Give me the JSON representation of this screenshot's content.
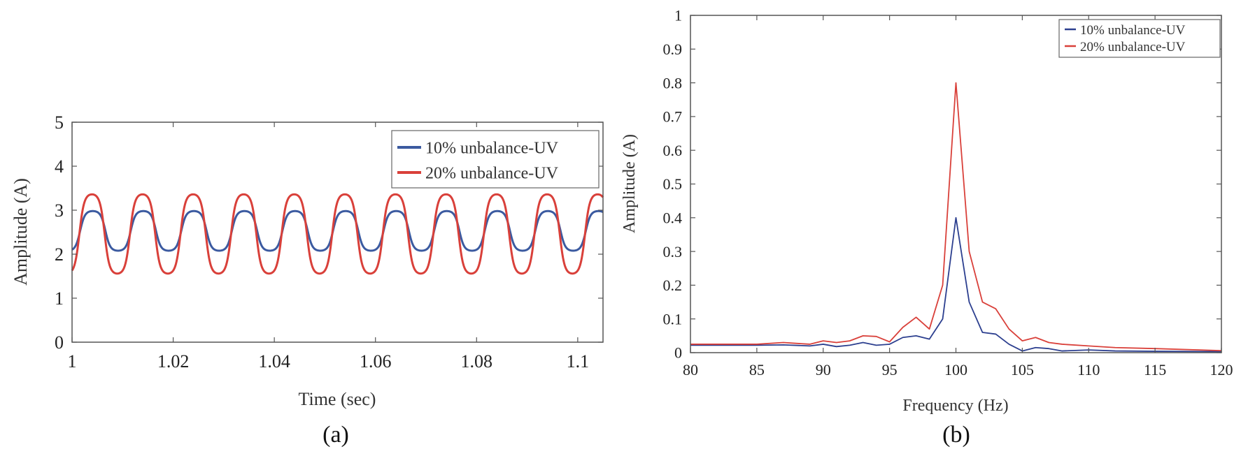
{
  "chart_data": [
    {
      "type": "line",
      "caption": "(a)",
      "xlabel": "Time (sec)",
      "ylabel": "Amplitude (A)",
      "xlim": [
        1,
        1.105
      ],
      "ylim": [
        0,
        5
      ],
      "xticks": [
        1,
        1.02,
        1.04,
        1.06,
        1.08,
        1.1
      ],
      "xtick_labels": [
        "1",
        "1.02",
        "1.04",
        "1.06",
        "1.08",
        "1.1"
      ],
      "yticks": [
        0,
        1,
        2,
        3,
        4,
        5
      ],
      "ytick_labels": [
        "0",
        "1",
        "2",
        "3",
        "4",
        "5"
      ],
      "grid": false,
      "legend_position": "top-right",
      "period_sec": 0.01,
      "series": [
        {
          "name": "10% unbalance-UV",
          "color": "#3b5aa0",
          "mean": 2.53,
          "amplitude": 0.45,
          "start": 2.15
        },
        {
          "name": "20% unbalance-UV",
          "color": "#d9403a",
          "mean": 2.46,
          "amplitude": 0.9,
          "start": 1.75
        }
      ]
    },
    {
      "type": "line",
      "caption": "(b)",
      "xlabel": "Frequency (Hz)",
      "ylabel": "Amplitude (A)",
      "xlim": [
        80,
        120
      ],
      "ylim": [
        0,
        1
      ],
      "xticks": [
        80,
        85,
        90,
        95,
        100,
        105,
        110,
        115,
        120
      ],
      "xtick_labels": [
        "80",
        "85",
        "90",
        "95",
        "100",
        "105",
        "110",
        "115",
        "120"
      ],
      "yticks": [
        0,
        0.1,
        0.2,
        0.3,
        0.4,
        0.5,
        0.6,
        0.7,
        0.8,
        0.9,
        1
      ],
      "ytick_labels": [
        "0",
        "0.1",
        "0.2",
        "0.3",
        "0.4",
        "0.5",
        "0.6",
        "0.7",
        "0.8",
        "0.9",
        "1"
      ],
      "grid": false,
      "legend_position": "top-right",
      "series": [
        {
          "name": "10% unbalance-UV",
          "color": "#2c3f8f",
          "x": [
            80,
            85,
            87,
            89,
            90,
            91,
            92,
            93,
            94,
            95,
            96,
            97,
            98,
            99,
            100,
            101,
            102,
            103,
            104,
            105,
            106,
            107,
            108,
            110,
            112,
            115,
            120
          ],
          "y": [
            0.022,
            0.022,
            0.023,
            0.02,
            0.025,
            0.018,
            0.022,
            0.03,
            0.022,
            0.025,
            0.045,
            0.05,
            0.04,
            0.1,
            0.4,
            0.15,
            0.06,
            0.055,
            0.025,
            0.005,
            0.015,
            0.012,
            0.005,
            0.008,
            0.005,
            0.004,
            0.003
          ]
        },
        {
          "name": "20% unbalance-UV",
          "color": "#d9403a",
          "x": [
            80,
            85,
            87,
            89,
            90,
            91,
            92,
            93,
            94,
            95,
            96,
            97,
            98,
            99,
            100,
            101,
            102,
            103,
            104,
            105,
            106,
            107,
            108,
            110,
            112,
            115,
            120
          ],
          "y": [
            0.025,
            0.025,
            0.03,
            0.025,
            0.035,
            0.03,
            0.035,
            0.05,
            0.048,
            0.032,
            0.075,
            0.105,
            0.07,
            0.2,
            0.8,
            0.3,
            0.15,
            0.13,
            0.07,
            0.035,
            0.045,
            0.03,
            0.025,
            0.02,
            0.015,
            0.012,
            0.006
          ]
        }
      ]
    }
  ]
}
